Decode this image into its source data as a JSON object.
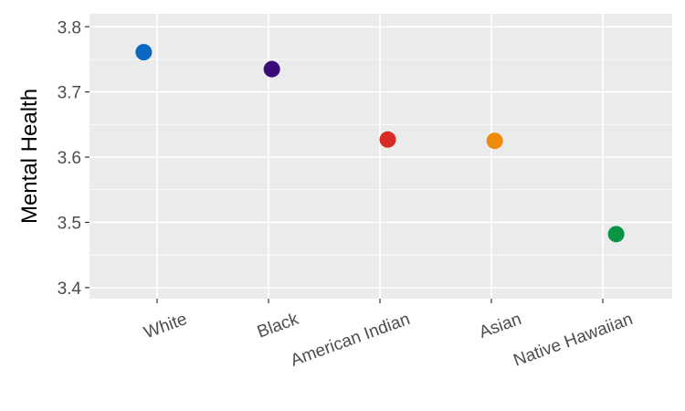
{
  "chart_data": {
    "type": "scatter",
    "title": "",
    "xlabel": "",
    "ylabel": "Mental Health",
    "ylim": [
      3.383,
      3.82
    ],
    "yticks": [
      3.4,
      3.5,
      3.6,
      3.7,
      3.8
    ],
    "grid": true,
    "categories": [
      "White",
      "Black",
      "American Indian",
      "Asian",
      "Native Hawaiian"
    ],
    "values": [
      3.761,
      3.735,
      3.627,
      3.625,
      3.482
    ],
    "colors": [
      "#0b67c2",
      "#3a0a7a",
      "#d92b26",
      "#f08a0b",
      "#0b9444"
    ],
    "point_offsets": [
      -0.12,
      0.03,
      0.07,
      0.03,
      0.12
    ]
  }
}
